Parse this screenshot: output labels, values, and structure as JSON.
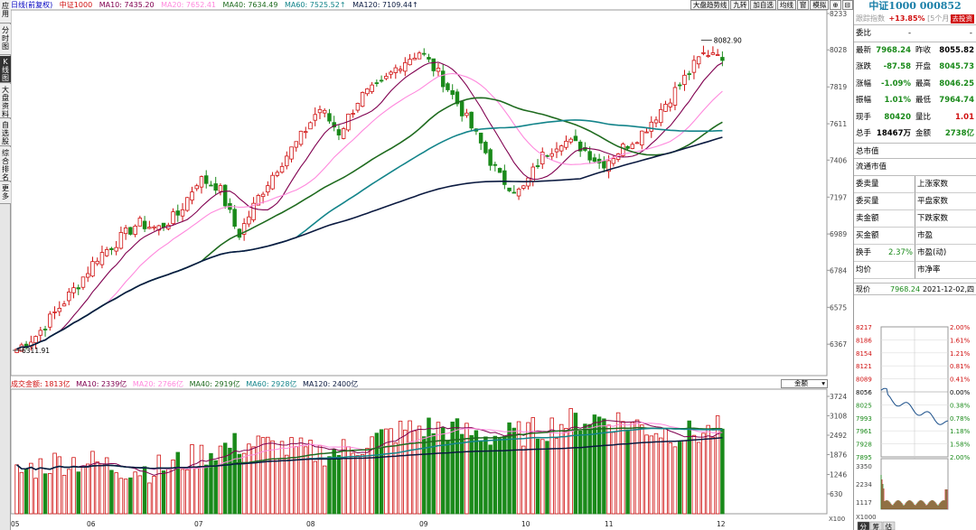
{
  "left_tabs": [
    "应用",
    "分时图",
    "K线图",
    "大盘资料",
    "自选股",
    "综合排名",
    "更多"
  ],
  "top_legend": {
    "period_label": "日线(前复权)",
    "name_label": "中证1000",
    "ma10": "MA10: 7435.20",
    "ma20": "MA20: 7652.41",
    "ma40": "MA40: 7634.49",
    "ma60": "MA60: 7525.52↑",
    "ma120": "MA120: 7109.44↑"
  },
  "toolbar": [
    "大盘趋势线",
    "九转",
    "加自选",
    "均线",
    "窗",
    "模拟",
    "⊕",
    "⊟"
  ],
  "volume_legend": {
    "amount": "成交金额: 1813亿",
    "ma10": "MA10: 2339亿",
    "ma20": "MA20: 2766亿",
    "ma40": "MA40: 2919亿",
    "ma60": "MA60: 2928亿",
    "ma120": "MA120: 2400亿"
  },
  "volume_select": "金额",
  "price_axis": [
    "8233",
    "8028",
    "7819",
    "7611",
    "7406",
    "7197",
    "6989",
    "6784",
    "6575",
    "6367"
  ],
  "volume_axis": [
    "3724",
    "3108",
    "2492",
    "1876",
    "1246",
    "630"
  ],
  "volume_unit": "X100",
  "date_axis": [
    "05",
    "06",
    "07",
    "08",
    "09",
    "10",
    "11",
    "12"
  ],
  "annotations": {
    "high": "8082.90",
    "low": "6311.91"
  },
  "colors": {
    "up": "#d01010",
    "down": "#1a8a1a",
    "ma10": "#800050",
    "ma20": "#ff88dd",
    "ma40": "#1f6b1f",
    "ma60": "#13848a",
    "ma120": "#0b1a40"
  },
  "chart_data": {
    "type": "candlestick",
    "ylim": [
      6311.91,
      8233
    ],
    "volume_ylim": [
      0,
      3724
    ],
    "high": 8082.9,
    "low": 6311.91,
    "series": [
      {
        "name": "MA10",
        "value": 7435.2
      },
      {
        "name": "MA20",
        "value": 7652.41
      },
      {
        "name": "MA40",
        "value": 7634.49
      },
      {
        "name": "MA60",
        "value": 7525.52
      },
      {
        "name": "MA120",
        "value": 7109.44
      }
    ],
    "close_anchors": [
      6340,
      6420,
      6560,
      6700,
      6860,
      6950,
      7050,
      7020,
      7100,
      7300,
      7260,
      6980,
      7200,
      7380,
      7520,
      7700,
      7560,
      7760,
      7820,
      7950,
      8020,
      7880,
      7700,
      7500,
      7300,
      7220,
      7420,
      7520,
      7480,
      7380,
      7470,
      7560,
      7700,
      7850,
      8000,
      8040
    ]
  },
  "right_panel": {
    "title": "中证1000 000852",
    "sub_label": "跟踪指数",
    "sub_value": "+13.85%",
    "sub_extra": "[5个月]",
    "sub_icon": "ⓘ",
    "sub_button": "去投资",
    "weibi_label": "委比",
    "weibi_value": "-",
    "weibi_right": "-",
    "rows": [
      {
        "l": "最新",
        "v": "7968.24",
        "vc": "dn",
        "r": "昨收",
        "rv": "8055.82",
        "rc": ""
      },
      {
        "l": "涨跌",
        "v": "-87.58",
        "vc": "dn",
        "r": "开盘",
        "rv": "8045.73",
        "rc": "dn"
      },
      {
        "l": "涨幅",
        "v": "-1.09%",
        "vc": "dn",
        "r": "最高",
        "rv": "8046.25",
        "rc": "dn"
      },
      {
        "l": "振幅",
        "v": "1.01%",
        "vc": "dn",
        "r": "最低",
        "rv": "7964.74",
        "rc": "dn"
      },
      {
        "l": "现手",
        "v": "80420",
        "vc": "dn",
        "r": "量比",
        "rv": "1.01",
        "rc": "up"
      },
      {
        "l": "总手",
        "v": "18467万",
        "vc": "",
        "r": "金额",
        "rv": "2738亿",
        "rc": "dn"
      }
    ],
    "mcap1": "总市值",
    "mcap2": "流通市值",
    "grid": [
      "委卖量",
      "上涨家数",
      "委买量",
      "平盘家数",
      "卖金额",
      "下跌家数",
      "买金额",
      "市盈",
      "换手",
      "市盈(动)",
      "均价",
      "市净率"
    ],
    "huanshou_value": "2.37%",
    "mini": {
      "label": "现价",
      "price": "7968.24",
      "date": "2021-12-02,四",
      "left_axis": [
        "8217",
        "8186",
        "8154",
        "8121",
        "8089",
        "8056",
        "8025",
        "7993",
        "7961",
        "7928",
        "7895"
      ],
      "right_axis": [
        "2.00%",
        "1.61%",
        "1.21%",
        "0.81%",
        "0.41%",
        "0.00%",
        "0.38%",
        "0.78%",
        "1.18%",
        "1.58%",
        "2.00%"
      ],
      "vol_axis": [
        "3350",
        "2234",
        "1117"
      ],
      "vol_unit": "X1000",
      "tabs": [
        "分",
        "筹",
        "估"
      ]
    }
  }
}
